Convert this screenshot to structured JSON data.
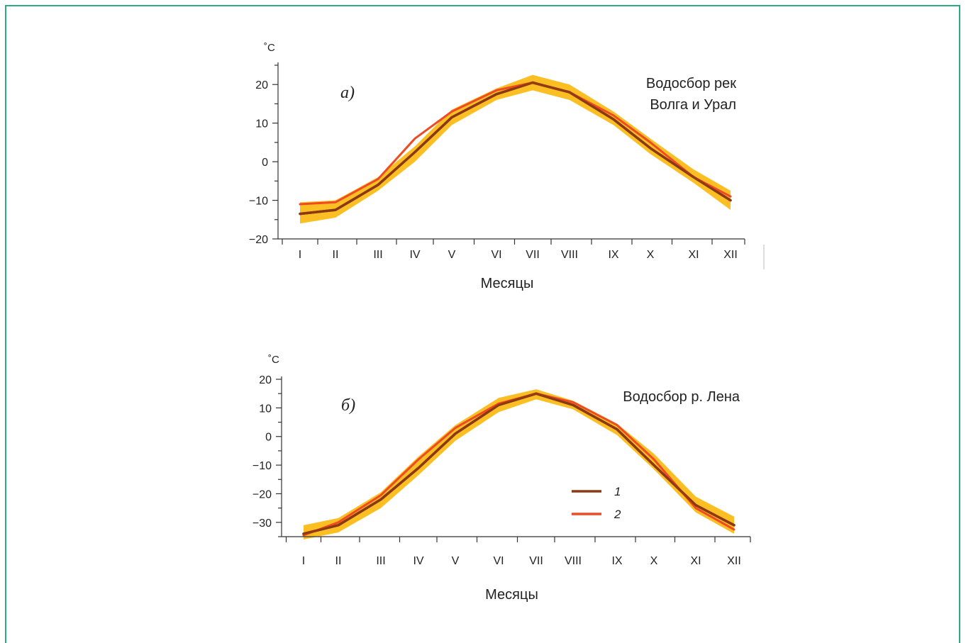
{
  "colors": {
    "band": "#fbbf24",
    "series1": "#8b3a14",
    "series2": "#ef4a23",
    "frame": "#2eaa82",
    "axis": "#333333"
  },
  "chart_data": [
    {
      "type": "line",
      "panel_label": "а)",
      "annotation": [
        "Водосбор рек",
        "Волга и Урал"
      ],
      "unit": "˚C",
      "xlabel": "Месяцы",
      "categories": [
        "I",
        "II",
        "III",
        "IV",
        "V",
        "VI",
        "VII",
        "VIII",
        "IX",
        "X",
        "XI",
        "XII"
      ],
      "ylim": [
        -20,
        25
      ],
      "yticks": [
        20,
        10,
        0,
        -10,
        -20
      ],
      "series": [
        {
          "name": "1",
          "values": [
            -13.5,
            -12.5,
            -6,
            2.5,
            11.5,
            17.5,
            20.5,
            18,
            11,
            3.5,
            -4,
            -10
          ]
        },
        {
          "name": "2",
          "values": [
            -11,
            -10.5,
            -4.5,
            6,
            13,
            18.5,
            20.5,
            18,
            12,
            5,
            -4,
            -9
          ]
        }
      ],
      "band": {
        "upper": [
          -10.5,
          -10,
          -4,
          4,
          13.5,
          19,
          22.5,
          20,
          13,
          6,
          -2,
          -7.5
        ],
        "lower": [
          -16,
          -14.5,
          -7.5,
          0,
          9.5,
          16,
          18.5,
          16,
          9.5,
          2,
          -5.5,
          -12.5
        ]
      }
    },
    {
      "type": "line",
      "panel_label": "б)",
      "annotation": [
        "Водосбор р. Лена"
      ],
      "unit": "˚C",
      "xlabel": "Месяцы",
      "categories": [
        "I",
        "II",
        "III",
        "IV",
        "V",
        "VI",
        "VII",
        "VIII",
        "IX",
        "X",
        "XI",
        "XII"
      ],
      "ylim": [
        -35,
        20
      ],
      "yticks": [
        20,
        10,
        0,
        -10,
        -20,
        -30
      ],
      "series": [
        {
          "name": "1",
          "values": [
            -34,
            -31,
            -22,
            -11,
            1,
            11,
            15,
            11,
            2.5,
            -10,
            -24,
            -31
          ]
        },
        {
          "name": "2",
          "values": [
            -34.5,
            -30,
            -20.5,
            -8,
            3,
            11.5,
            15,
            12,
            4,
            -8,
            -25,
            -32.5
          ]
        }
      ],
      "band": {
        "upper": [
          -31,
          -28.5,
          -19.5,
          -7,
          4,
          13.5,
          16.5,
          12.5,
          4.5,
          -6,
          -21,
          -28
        ],
        "lower": [
          -36,
          -33.5,
          -25,
          -13.5,
          -1.5,
          8.5,
          13,
          9.5,
          0.5,
          -11.5,
          -26.5,
          -34
        ]
      },
      "legend": {
        "position": "lower-center",
        "entries": [
          "1",
          "2"
        ]
      }
    }
  ]
}
